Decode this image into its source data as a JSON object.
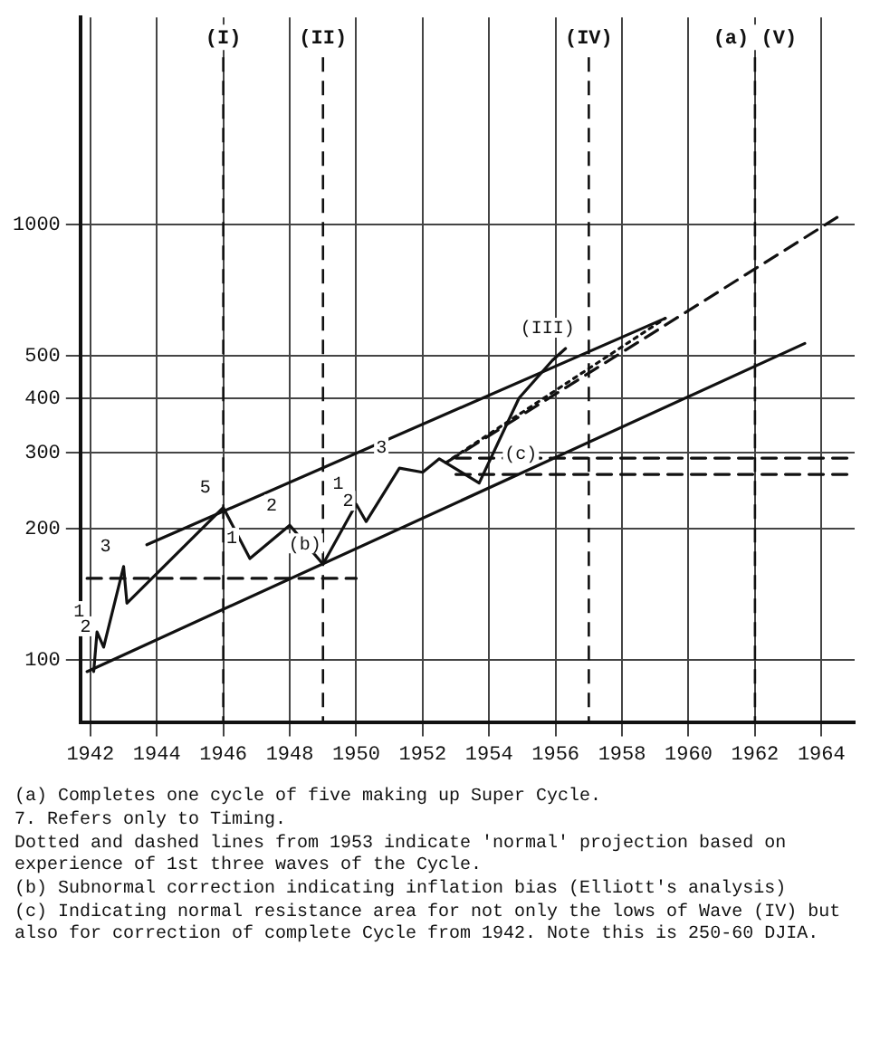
{
  "chart_data": {
    "type": "line",
    "log": "y",
    "grid": true,
    "legend": false,
    "marker": "none",
    "xlim": [
      1941.7,
      1965
    ],
    "xticks": [
      1942,
      1944,
      1946,
      1948,
      1950,
      1952,
      1954,
      1956,
      1958,
      1960,
      1962,
      1964
    ],
    "ylim": [
      72,
      3000
    ],
    "yticks": [
      100,
      200,
      300,
      400,
      500,
      1000
    ],
    "series": [
      {
        "color": "#111111",
        "line_style": "solid",
        "x": [
          1942.1,
          1942.2,
          1942.4,
          1943.0,
          1943.1,
          1946.0,
          1946.8,
          1948.0,
          1949.0,
          1950.0,
          1950.3,
          1951.3,
          1952.0,
          1952.5,
          1953.7,
          1954.9,
          1955.9,
          1956.3
        ],
        "values": [
          94,
          116,
          107,
          164,
          135,
          224,
          171,
          204,
          166,
          228,
          208,
          276,
          270,
          290,
          255,
          400,
          488,
          520
        ]
      },
      {
        "color": "#111111",
        "line_style": "solid",
        "x": [
          1943.7,
          1959.3
        ],
        "values": [
          184,
          610
        ]
      },
      {
        "color": "#111111",
        "line_style": "solid",
        "x": [
          1941.9,
          1963.5
        ],
        "values": [
          94,
          534
        ]
      },
      {
        "color": "#111111",
        "line_style": "dashed",
        "x": [
          1952.7,
          1964.5
        ],
        "values": [
          284,
          1044
        ]
      },
      {
        "color": "#111111",
        "line_style": "dotted",
        "x": [
          1952.9,
          1959.3
        ],
        "values": [
          291,
          610
        ]
      },
      {
        "color": "#111111",
        "line_style": "dashed",
        "x": [
          1953,
          1964.9
        ],
        "values": [
          291,
          291
        ]
      },
      {
        "color": "#111111",
        "line_style": "dashed",
        "x": [
          1953,
          1964.9
        ],
        "values": [
          267,
          267
        ]
      },
      {
        "color": "#111111",
        "line_style": "dashed",
        "x": [
          1941.9,
          1950
        ],
        "values": [
          154,
          154
        ]
      }
    ],
    "ref_lines": [
      {
        "axis": "x",
        "value": 1946,
        "label": "(I)",
        "line_style": "dashed"
      },
      {
        "axis": "x",
        "value": 1949,
        "label": "(II)",
        "line_style": "dashed"
      },
      {
        "axis": "x",
        "value": 1957,
        "label": "(IV)",
        "line_style": "dashed"
      },
      {
        "axis": "x",
        "value": 1962,
        "label": "(a) (V)",
        "line_style": "dashed"
      }
    ],
    "annotations": [
      {
        "text": "1",
        "x": 1942.2,
        "y": 116
      },
      {
        "text": "2",
        "x": 1942.4,
        "y": 107
      },
      {
        "text": "3",
        "x": 1943.0,
        "y": 164
      },
      {
        "text": "5",
        "x": 1946.0,
        "y": 224
      },
      {
        "text": "1",
        "x": 1946.8,
        "y": 171
      },
      {
        "text": "2",
        "x": 1948.0,
        "y": 204
      },
      {
        "text": "(b)",
        "x": 1949.0,
        "y": 166
      },
      {
        "text": "1",
        "x": 1950.0,
        "y": 228
      },
      {
        "text": "2",
        "x": 1950.3,
        "y": 208
      },
      {
        "text": "3",
        "x": 1951.3,
        "y": 276
      },
      {
        "text": "(III)",
        "x": 1956.3,
        "y": 520
      },
      {
        "text": "(c)",
        "x": 1955.5,
        "y": 267
      },
      "(a) Completes one cycle of five making up Super Cycle.",
      "7. Refers only to Timing.",
      "Dotted and dashed lines from 1953 indicate 'normal' projection based on experience of 1st three waves of the Cycle.",
      "(b) Subnormal correction indicating inflation bias (Elliott's analysis)",
      "(c) Indicating normal resistance area for not only the lows of Wave (IV) but also for correction of complete Cycle from 1942. Note this is 250-60 DJIA."
    ]
  }
}
